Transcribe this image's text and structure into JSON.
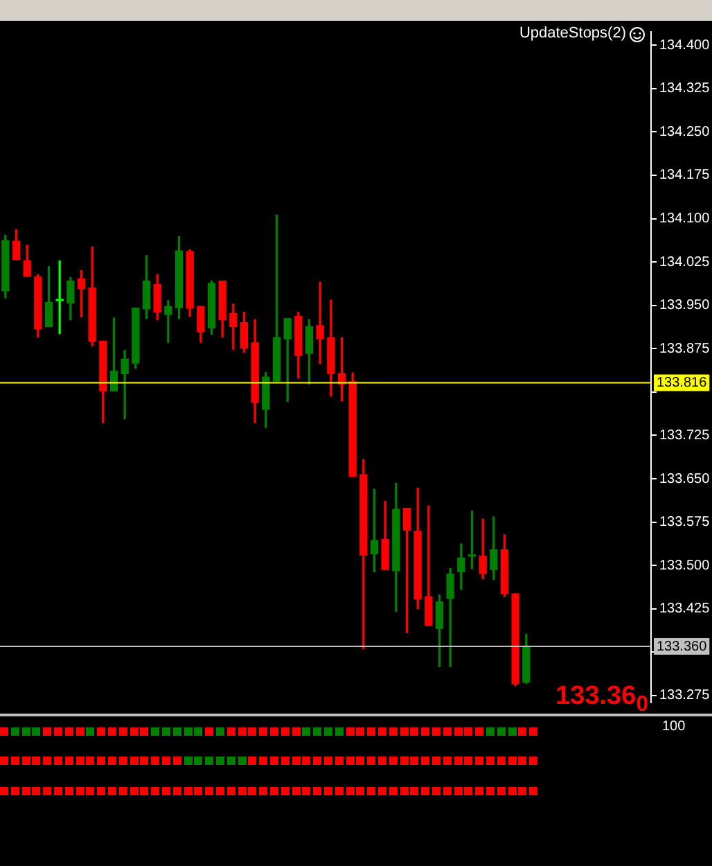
{
  "chart_data": {
    "type": "candlestick",
    "categories": [
      null,
      null,
      null,
      null,
      null,
      null,
      null,
      null,
      null,
      null,
      null,
      null,
      null,
      null,
      null,
      null,
      null,
      null,
      null,
      null,
      null,
      null,
      null,
      null,
      null,
      null,
      null,
      null,
      null,
      null,
      null,
      null,
      null,
      null,
      null,
      null,
      null,
      null,
      null,
      null,
      null,
      null,
      null,
      null,
      null,
      null,
      null,
      null,
      null,
      null,
      null,
      null,
      null,
      null,
      null,
      null,
      null,
      null,
      null,
      null
    ],
    "ohlc": [
      [
        133.975,
        134.071,
        133.963,
        134.062
      ],
      [
        134.061,
        134.081,
        134.029,
        134.029
      ],
      [
        134.027,
        134.054,
        134.0,
        134.0
      ],
      [
        133.999,
        134.003,
        133.895,
        133.909
      ],
      [
        133.913,
        134.017,
        133.913,
        133.955
      ],
      [
        133.958,
        134.027,
        133.901,
        133.958
      ],
      [
        133.954,
        133.998,
        133.925,
        133.992
      ],
      [
        133.996,
        134.01,
        133.93,
        133.979
      ],
      [
        133.98,
        134.051,
        133.88,
        133.888
      ],
      [
        133.888,
        133.888,
        133.747,
        133.802
      ],
      [
        133.802,
        133.928,
        133.802,
        133.836
      ],
      [
        133.832,
        133.872,
        133.754,
        133.857
      ],
      [
        133.85,
        133.945,
        133.841,
        133.945
      ],
      [
        133.944,
        134.036,
        133.927,
        133.992
      ],
      [
        133.986,
        134.003,
        133.925,
        133.938
      ],
      [
        133.934,
        133.958,
        133.886,
        133.948
      ],
      [
        133.946,
        134.069,
        133.927,
        134.044
      ],
      [
        134.043,
        134.046,
        133.931,
        133.945
      ],
      [
        133.948,
        133.948,
        133.886,
        133.904
      ],
      [
        133.911,
        133.992,
        133.9,
        133.988
      ],
      [
        133.992,
        133.992,
        133.895,
        133.925
      ],
      [
        133.936,
        133.952,
        133.874,
        133.913
      ],
      [
        133.92,
        133.938,
        133.869,
        133.876
      ],
      [
        133.885,
        133.925,
        133.747,
        133.782
      ],
      [
        133.77,
        133.834,
        133.739,
        133.826
      ],
      [
        133.819,
        134.106,
        133.819,
        133.894
      ],
      [
        133.892,
        133.927,
        133.784,
        133.927
      ],
      [
        133.931,
        133.938,
        133.824,
        133.863
      ],
      [
        133.867,
        133.925,
        133.814,
        133.913
      ],
      [
        133.915,
        133.99,
        133.849,
        133.892
      ],
      [
        133.894,
        133.959,
        133.793,
        133.832
      ],
      [
        133.832,
        133.894,
        133.785,
        133.814
      ],
      [
        133.818,
        133.833,
        133.654,
        133.654
      ],
      [
        133.657,
        133.683,
        133.356,
        133.518
      ],
      [
        133.52,
        133.632,
        133.489,
        133.543
      ],
      [
        133.545,
        133.611,
        133.493,
        133.493
      ],
      [
        133.491,
        133.642,
        133.421,
        133.597
      ],
      [
        133.599,
        133.599,
        133.384,
        133.561
      ],
      [
        133.559,
        133.634,
        133.425,
        133.442
      ],
      [
        133.446,
        133.603,
        133.396,
        133.396
      ],
      [
        133.391,
        133.449,
        133.325,
        133.437
      ],
      [
        133.443,
        133.495,
        133.325,
        133.485
      ],
      [
        133.489,
        133.537,
        133.459,
        133.513
      ],
      [
        133.516,
        133.594,
        133.495,
        133.516
      ],
      [
        133.516,
        133.58,
        133.477,
        133.486
      ],
      [
        133.493,
        133.584,
        133.476,
        133.527
      ],
      [
        133.527,
        133.553,
        133.446,
        133.451
      ],
      [
        133.451,
        133.451,
        133.292,
        133.295
      ],
      [
        133.298,
        133.381,
        133.296,
        133.36
      ],
      null,
      null,
      null,
      null,
      null,
      null,
      null,
      null,
      null,
      null,
      null
    ],
    "colors": [
      "#008000",
      "#ff0000",
      "#ff0000",
      "#ff0000",
      "#008000",
      "#00ff00",
      "#008000",
      "#ff0000",
      "#ff0000",
      "#ff0000",
      "#008000",
      "#008000",
      "#008000",
      "#008000",
      "#ff0000",
      "#008000",
      "#008000",
      "#ff0000",
      "#ff0000",
      "#008000",
      "#ff0000",
      "#ff0000",
      "#ff0000",
      "#ff0000",
      "#008000",
      "#008000",
      "#008000",
      "#ff0000",
      "#008000",
      "#ff0000",
      "#ff0000",
      "#ff0000",
      "#ff0000",
      "#ff0000",
      "#008000",
      "#ff0000",
      "#008000",
      "#ff0000",
      "#ff0000",
      "#ff0000",
      "#008000",
      "#008000",
      "#008000",
      "#008000",
      "#ff0000",
      "#008000",
      "#ff0000",
      "#ff0000",
      "#008000",
      null,
      null,
      null,
      null,
      null,
      null,
      null,
      null,
      null,
      null,
      null
    ],
    "ylim": [
      133.263,
      134.423
    ],
    "yticks": [
      {
        "value": 134.4,
        "label": "134.400"
      },
      {
        "value": 134.325,
        "label": "134.325"
      },
      {
        "value": 134.25,
        "label": "134.250"
      },
      {
        "value": 134.175,
        "label": "134.175"
      },
      {
        "value": 134.1,
        "label": "134.100"
      },
      {
        "value": 134.025,
        "label": "134.025"
      },
      {
        "value": 133.95,
        "label": "133.950"
      },
      {
        "value": 133.875,
        "label": "133.875"
      },
      {
        "value": 133.8,
        "label": null
      },
      {
        "value": 133.725,
        "label": "133.725"
      },
      {
        "value": 133.65,
        "label": "133.650"
      },
      {
        "value": 133.575,
        "label": "133.575"
      },
      {
        "value": 133.5,
        "label": "133.500"
      },
      {
        "value": 133.425,
        "label": "133.425"
      },
      {
        "value": 133.35,
        "label": null
      },
      {
        "value": 133.275,
        "label": "133.275"
      }
    ],
    "ref_lines": [
      {
        "axis": "y",
        "value": 133.816,
        "label": "133.816",
        "color": "#ffff00"
      },
      {
        "axis": "y",
        "value": 133.36,
        "label": "133.360",
        "color": "#c0c0c0"
      }
    ],
    "annotations": [
      "UpdateStops(2)",
      "133.36$_{0}$",
      "100"
    ],
    "grid": false,
    "legend": false,
    "tick_labels": "y"
  }
}
